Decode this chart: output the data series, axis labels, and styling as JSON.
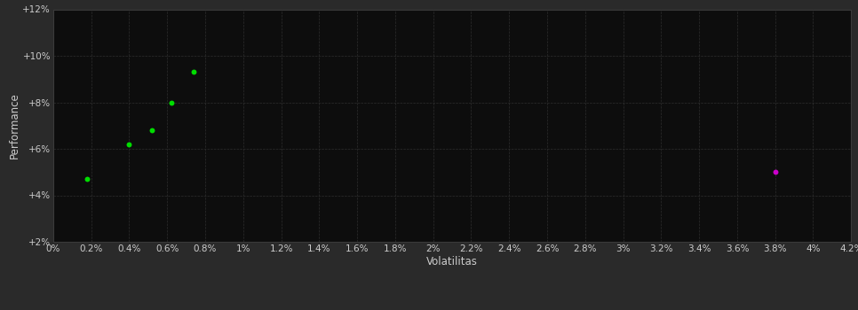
{
  "background_color": "#2a2a2a",
  "plot_bg_color": "#0d0d0d",
  "grid_color": "#2e2e2e",
  "grid_style": "--",
  "x_label": "Volatilitas",
  "y_label": "Performance",
  "x_ticks": [
    0.0,
    0.002,
    0.004,
    0.006,
    0.008,
    0.01,
    0.012,
    0.014,
    0.016,
    0.018,
    0.02,
    0.022,
    0.024,
    0.026,
    0.028,
    0.03,
    0.032,
    0.034,
    0.036,
    0.038,
    0.04,
    0.042
  ],
  "x_tick_labels": [
    "0%",
    "0.2%",
    "0.4%",
    "0.6%",
    "0.8%",
    "1%",
    "1.2%",
    "1.4%",
    "1.6%",
    "1.8%",
    "2%",
    "2.2%",
    "2.4%",
    "2.6%",
    "2.8%",
    "3%",
    "3.2%",
    "3.4%",
    "3.6%",
    "3.8%",
    "4%",
    "4.2%"
  ],
  "y_ticks": [
    0.02,
    0.04,
    0.06,
    0.08,
    0.1,
    0.12
  ],
  "y_tick_labels": [
    "+2%",
    "+4%",
    "+6%",
    "+8%",
    "+10%",
    "+12%"
  ],
  "xlim": [
    0.0,
    0.042
  ],
  "ylim": [
    0.02,
    0.12
  ],
  "green_points": [
    [
      0.0018,
      0.047
    ],
    [
      0.004,
      0.062
    ],
    [
      0.0052,
      0.068
    ],
    [
      0.0062,
      0.08
    ],
    [
      0.0074,
      0.093
    ]
  ],
  "magenta_point": [
    0.038,
    0.05
  ],
  "green_color": "#00dd00",
  "magenta_color": "#cc00cc",
  "dot_size": 18,
  "tick_color": "#cccccc",
  "label_color": "#cccccc",
  "tick_fontsize": 7.5,
  "label_fontsize": 8.5
}
